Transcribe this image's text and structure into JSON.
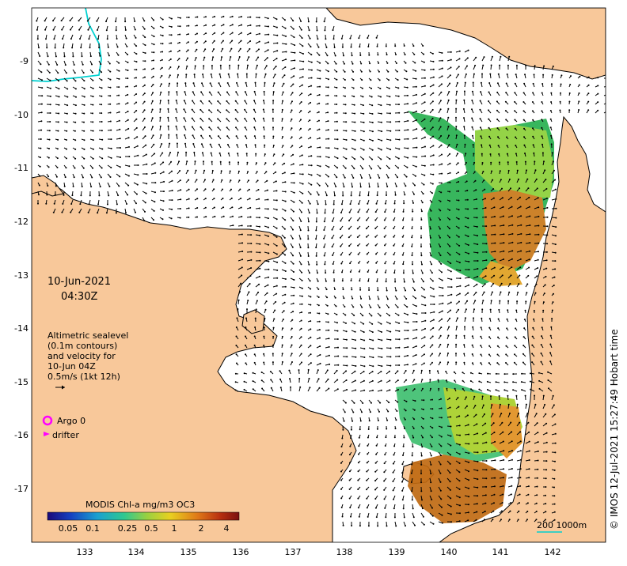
{
  "map": {
    "lon_ticks": [
      "133",
      "134",
      "135",
      "136",
      "137",
      "138",
      "139",
      "140",
      "141",
      "142"
    ],
    "lat_ticks": [
      "9",
      "10",
      "11",
      "12",
      "13",
      "14",
      "15",
      "16",
      "17"
    ],
    "lat_ticks_prefix": "-",
    "colors": {
      "land": "#f8c89a",
      "sea": "#ffffff",
      "coast": "#000000",
      "arrow": "#000000",
      "border_line": "#00d0d0",
      "argo_marker": "#ff00ff",
      "drifter_marker": "#ff00ff"
    }
  },
  "annotations": {
    "date": "10-Jun-2021",
    "time": "04:30Z",
    "altimetry_lines": [
      "Altimetric sealevel",
      "(0.1m contours)",
      "and velocity for",
      "10-Jun 04Z",
      "0.5m/s (1kt 12h)"
    ],
    "argo_label": "Argo 0",
    "drifter_label": "drifter",
    "scale_label": "200  1000m",
    "credit": "© IMOS 12-Jul-2021 15:27:49 Hobart time"
  },
  "colorbar": {
    "title": "MODIS Chl-a mg/m3 OC3",
    "tick_labels": [
      "0.05",
      "0.1",
      "0.25",
      "0.5",
      "1",
      "2",
      "4"
    ],
    "colormap": [
      "#00007f",
      "#0000ff",
      "#007fff",
      "#00ffff",
      "#7fff7f",
      "#ffff00",
      "#ff7f00",
      "#ff0000",
      "#7f0000"
    ]
  }
}
